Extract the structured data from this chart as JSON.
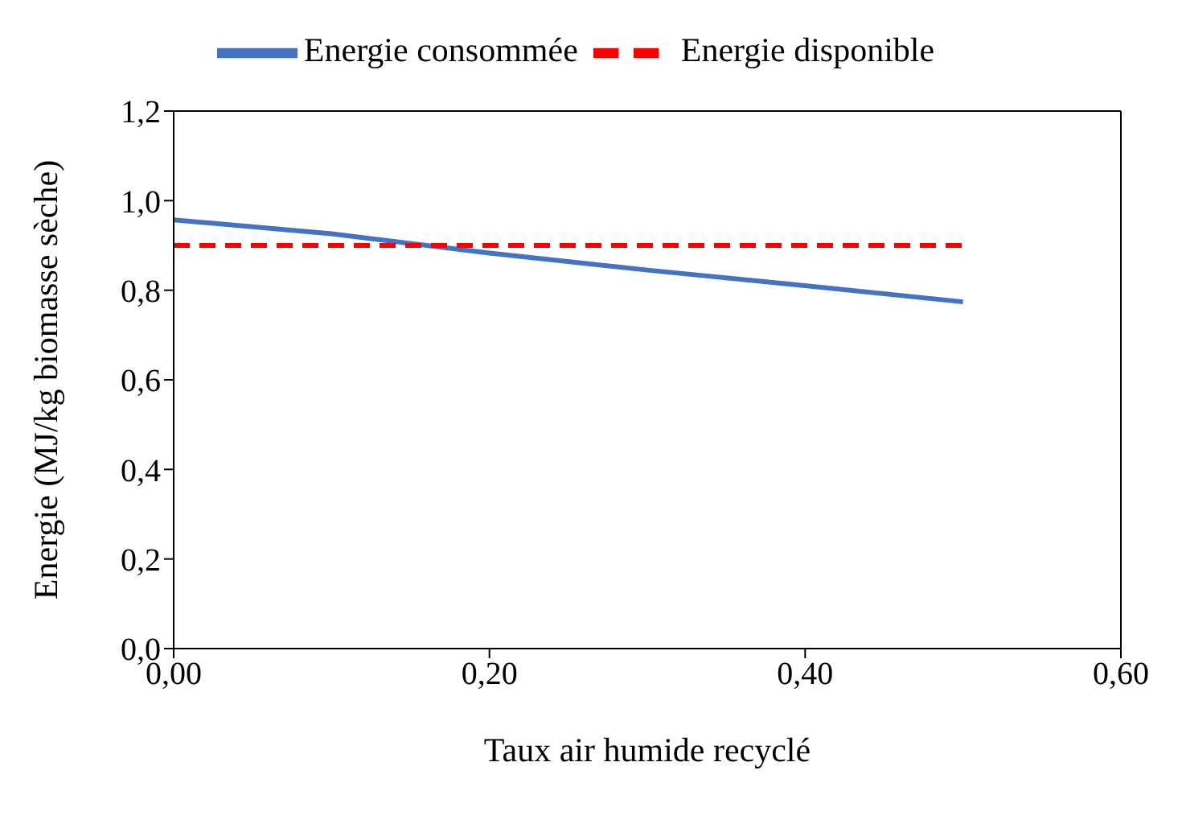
{
  "chart_data": {
    "type": "line",
    "xlabel": "Taux air humide recyclé",
    "ylabel": "Energie  (MJ/kg biomasse sèche)",
    "series": [
      {
        "name": "Energie consommée",
        "color": "#4472c4",
        "x": [
          0,
          0.1,
          0.2,
          0.3,
          0.4,
          0.5
        ],
        "values": [
          0.957,
          0.926,
          0.883,
          0.845,
          0.81,
          0.774
        ],
        "line_style": "solid"
      },
      {
        "name": "Energie disponible",
        "color": "#ff0000",
        "x": [
          0,
          0.5
        ],
        "values": [
          0.9,
          0.9
        ],
        "line_style": "dashed"
      }
    ],
    "xlim": [
      0,
      0.6
    ],
    "xticks": [
      {
        "value": 0,
        "label": "0,00"
      },
      {
        "value": 0.2,
        "label": "0,20"
      },
      {
        "value": 0.4,
        "label": "0,40"
      },
      {
        "value": 0.6,
        "label": "0,60"
      }
    ],
    "ylim": [
      0,
      1.2
    ],
    "yticks": [
      {
        "value": 0,
        "label": "0,0"
      },
      {
        "value": 0.2,
        "label": "0,2"
      },
      {
        "value": 0.4,
        "label": "0,4"
      },
      {
        "value": 0.6,
        "label": "0,6"
      },
      {
        "value": 0.8,
        "label": "0,8"
      },
      {
        "value": 1,
        "label": "1,0"
      },
      {
        "value": 1.2,
        "label": "1,2"
      }
    ],
    "legend": "top",
    "marker": "none"
  }
}
